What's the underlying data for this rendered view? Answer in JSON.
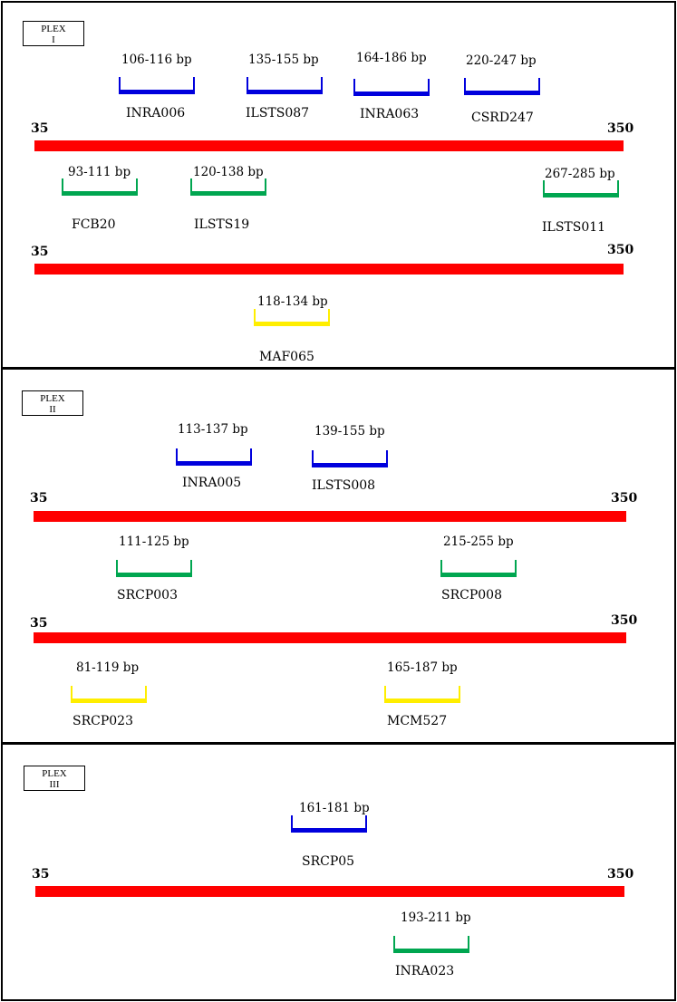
{
  "colors": {
    "axis": "#ff0000",
    "blue": "#0000dd",
    "green": "#00a650",
    "yellow": "#ffee00"
  },
  "plexes": [
    {
      "label_line1": "PLEX",
      "label_line2": "I",
      "axes": [
        {
          "start": "35",
          "end": "350"
        },
        {
          "start": "35",
          "end": "350"
        }
      ],
      "markers": [
        {
          "range": "106-116 bp",
          "name": "INRA006",
          "color": "blue"
        },
        {
          "range": "135-155 bp",
          "name": "ILSTS087",
          "color": "blue"
        },
        {
          "range": "164-186 bp",
          "name": "INRA063",
          "color": "blue"
        },
        {
          "range": "220-247 bp",
          "name": "CSRD247",
          "color": "blue"
        },
        {
          "range": "93-111 bp",
          "name": "FCB20",
          "color": "green"
        },
        {
          "range": "120-138 bp",
          "name": "ILSTS19",
          "color": "green"
        },
        {
          "range": "267-285 bp",
          "name": "ILSTS011",
          "color": "green"
        },
        {
          "range": "118-134 bp",
          "name": "MAF065",
          "color": "yellow"
        }
      ]
    },
    {
      "label_line1": "PLEX",
      "label_line2": "II",
      "axes": [
        {
          "start": "35",
          "end": "350"
        },
        {
          "start": "35",
          "end": "350"
        }
      ],
      "markers": [
        {
          "range": "113-137 bp",
          "name": "INRA005",
          "color": "blue"
        },
        {
          "range": "139-155 bp",
          "name": "ILSTS008",
          "color": "blue"
        },
        {
          "range": "111-125 bp",
          "name": "SRCP003",
          "color": "green"
        },
        {
          "range": "215-255 bp",
          "name": "SRCP008",
          "color": "green"
        },
        {
          "range": "81-119 bp",
          "name": "SRCP023",
          "color": "yellow"
        },
        {
          "range": "165-187 bp",
          "name": "MCM527",
          "color": "yellow"
        }
      ]
    },
    {
      "label_line1": "PLEX",
      "label_line2": "III",
      "axes": [
        {
          "start": "35",
          "end": "350"
        }
      ],
      "markers": [
        {
          "range": "161-181 bp",
          "name": "SRCP05",
          "color": "blue"
        },
        {
          "range": "193-211 bp",
          "name": "INRA023",
          "color": "green"
        }
      ]
    }
  ]
}
